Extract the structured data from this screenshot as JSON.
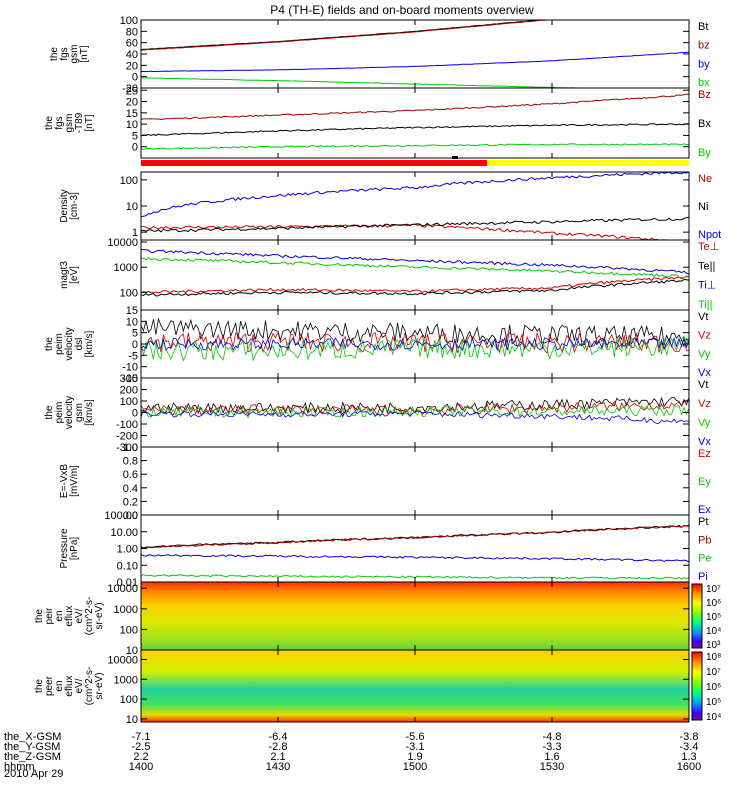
{
  "title": "P4 (TH-E) fields and on-board moments overview",
  "date_label": "2010 Apr 29",
  "orbit_rows": [
    {
      "label": "the_X-GSM",
      "values": [
        "-7.1",
        "-6.4",
        "-5.6",
        "-4.8",
        "-3.8"
      ]
    },
    {
      "label": "the_Y-GSM",
      "values": [
        "-2.5",
        "-2.8",
        "-3.1",
        "-3.3",
        "-3.4"
      ]
    },
    {
      "label": "the_Z-GSM",
      "values": [
        "2.2",
        "2.1",
        "1.9",
        "1.6",
        "1.3"
      ]
    },
    {
      "label": "hhmm",
      "values": [
        "1400",
        "1430",
        "1500",
        "1530",
        "1600"
      ]
    }
  ],
  "colors": {
    "black": "#000000",
    "red": "#d00000",
    "darkred": "#a00000",
    "blue": "#0000dd",
    "green": "#00cc00",
    "yellow": "#ffff00"
  },
  "chart_data": [
    {
      "type": "line",
      "ylabel": [
        "the",
        "fgs",
        "gsm",
        "[nT]"
      ],
      "ylim": [
        -20,
        100
      ],
      "ticks": [
        "100",
        "80",
        "60",
        "40",
        "20",
        "0",
        "-20"
      ],
      "tick_values": [
        100,
        80,
        60,
        40,
        20,
        0,
        -20
      ],
      "x": [
        0,
        0.25,
        0.5,
        0.75,
        1
      ],
      "series": [
        {
          "name": "Bt",
          "color": "#000000",
          "values": [
            48,
            62,
            80,
            102,
            130
          ]
        },
        {
          "name": "bz",
          "color": "#a00000",
          "values": [
            47,
            61,
            79,
            101,
            129
          ]
        },
        {
          "name": "by",
          "color": "#0000dd",
          "values": [
            9,
            12,
            18,
            28,
            43
          ]
        },
        {
          "name": "bx",
          "color": "#00cc00",
          "values": [
            -2,
            -7,
            -13,
            -19,
            -25
          ]
        }
      ]
    },
    {
      "type": "line",
      "ylabel": [
        "the",
        "fgs",
        "gsm",
        "-T89",
        "[nT]"
      ],
      "ylim": [
        -5,
        26
      ],
      "ticks": [
        "25",
        "20",
        "15",
        "10",
        "5",
        "0"
      ],
      "tick_values": [
        25,
        20,
        15,
        10,
        5,
        0
      ],
      "x": [
        0,
        0.25,
        0.5,
        0.75,
        1
      ],
      "series": [
        {
          "name": "Bz",
          "color": "#a00000",
          "values": [
            12,
            14,
            16,
            19,
            23
          ]
        },
        {
          "name": "Bx",
          "color": "#000000",
          "values": [
            5,
            7,
            8.5,
            9.5,
            10
          ]
        },
        {
          "name": "By",
          "color": "#00cc00",
          "values": [
            -1,
            0,
            0.5,
            1,
            1
          ]
        }
      ]
    },
    {
      "type": "line",
      "scale": "log",
      "ylabel": [
        "Density",
        "[cm-3]"
      ],
      "ylim": [
        0.5,
        200
      ],
      "ticks": [
        "100",
        "10",
        "1"
      ],
      "tick_values": [
        100,
        10,
        1
      ],
      "x": [
        0,
        0.25,
        0.5,
        0.75,
        1
      ],
      "series": [
        {
          "name": "Ne",
          "color": "#d00000",
          "values": [
            1.5,
            1.6,
            1.8,
            0.9,
            0.4
          ]
        },
        {
          "name": "Ni",
          "color": "#000000",
          "values": [
            1.1,
            1.4,
            1.9,
            2.5,
            3.3
          ]
        },
        {
          "name": "Npot",
          "color": "#0000dd",
          "values": [
            4,
            25,
            50,
            120,
            200
          ]
        }
      ]
    },
    {
      "type": "line",
      "scale": "log",
      "ylabel": [
        "magt3",
        "[eV]"
      ],
      "ylim": [
        20,
        12000
      ],
      "ticks": [
        "10000",
        "1000",
        "100"
      ],
      "tick_values": [
        10000,
        1000,
        100
      ],
      "x": [
        0,
        0.25,
        0.5,
        0.75,
        1
      ],
      "series": [
        {
          "name": "Te⊥",
          "color": "#d00000",
          "values": [
            100,
            130,
            110,
            150,
            400
          ]
        },
        {
          "name": "Te||",
          "color": "#000000",
          "values": [
            80,
            100,
            90,
            120,
            300
          ]
        },
        {
          "name": "Ti⊥",
          "color": "#0000dd",
          "values": [
            4500,
            2800,
            1800,
            1200,
            600
          ]
        },
        {
          "name": "Ti||",
          "color": "#00cc00",
          "values": [
            2200,
            1500,
            1000,
            700,
            420
          ]
        }
      ]
    },
    {
      "type": "line",
      "ylabel": [
        "the",
        "peim",
        "velocity",
        "dsl",
        "[km/s]"
      ],
      "ylim": [
        -15,
        15
      ],
      "ticks": [
        "15",
        "10",
        "5",
        "0",
        "-5",
        "-10",
        "-15"
      ],
      "tick_values": [
        15,
        10,
        5,
        0,
        -5,
        -10,
        -15
      ],
      "x": [
        0,
        0.25,
        0.5,
        0.75,
        1
      ],
      "series": [
        {
          "name": "Vt",
          "color": "#000000",
          "values": [
            7,
            6,
            5,
            4,
            3
          ]
        },
        {
          "name": "Vz",
          "color": "#d00000",
          "values": [
            1,
            1,
            0.5,
            0.5,
            0.5
          ]
        },
        {
          "name": "Vy",
          "color": "#00cc00",
          "values": [
            -3,
            -3,
            -2,
            -2,
            -1
          ]
        },
        {
          "name": "Vx",
          "color": "#0000dd",
          "values": [
            0,
            0,
            0,
            0,
            0
          ]
        }
      ]
    },
    {
      "type": "line",
      "ylabel": [
        "the",
        "peim",
        "velocity",
        "gsm",
        "[km/s]"
      ],
      "ylim": [
        -300,
        300
      ],
      "ticks": [
        "300",
        "200",
        "100",
        "0",
        "-100",
        "-200",
        "-300"
      ],
      "tick_values": [
        300,
        200,
        100,
        0,
        -100,
        -200,
        -300
      ],
      "x": [
        0,
        0.25,
        0.5,
        0.75,
        1
      ],
      "series": [
        {
          "name": "Vt",
          "color": "#000000",
          "values": [
            40,
            40,
            45,
            70,
            100
          ]
        },
        {
          "name": "Vz",
          "color": "#d00000",
          "values": [
            20,
            25,
            20,
            40,
            70
          ]
        },
        {
          "name": "Vy",
          "color": "#00cc00",
          "values": [
            0,
            0,
            10,
            10,
            20
          ]
        },
        {
          "name": "Vx",
          "color": "#0000dd",
          "values": [
            -10,
            -15,
            -10,
            -30,
            -80
          ]
        }
      ]
    },
    {
      "type": "line",
      "ylabel": [
        "E=-VxB",
        "[mV/m]"
      ],
      "ylim": [
        0,
        1
      ],
      "ticks": [
        "1.0",
        "0.8",
        "0.6",
        "0.4",
        "0.2",
        "0.0"
      ],
      "tick_values": [
        1,
        0.8,
        0.6,
        0.4,
        0.2,
        0
      ],
      "x": [],
      "series": [
        {
          "name": "Ez",
          "color": "#d00000",
          "values": []
        },
        {
          "name": "Ey",
          "color": "#00cc00",
          "values": []
        },
        {
          "name": "Ex",
          "color": "#0000dd",
          "values": []
        }
      ]
    },
    {
      "type": "line",
      "scale": "log",
      "ylabel": [
        "Pressure",
        "[nPa]"
      ],
      "ylim": [
        0.01,
        100
      ],
      "ticks": [
        "100.00",
        "10.00",
        "1.00",
        "0.10",
        "0.01"
      ],
      "tick_values": [
        100,
        10,
        1,
        0.1,
        0.01
      ],
      "x": [
        0,
        0.25,
        0.5,
        0.75,
        1
      ],
      "series": [
        {
          "name": "Pt",
          "color": "#000000",
          "values": [
            1.2,
            2.3,
            4.5,
            9,
            22
          ]
        },
        {
          "name": "Pb",
          "color": "#a00000",
          "values": [
            1.1,
            2.2,
            4.4,
            8.8,
            21
          ]
        },
        {
          "name": "Pe",
          "color": "#00cc00",
          "values": [
            0.025,
            0.022,
            0.02,
            0.018,
            0.017
          ]
        },
        {
          "name": "Pi",
          "color": "#0000dd",
          "values": [
            0.4,
            0.35,
            0.3,
            0.25,
            0.18
          ]
        }
      ]
    },
    {
      "type": "heatmap",
      "ylabel": [
        "the",
        "peir",
        "en",
        "eflux",
        "eV/",
        "(cm^2-s-",
        "sr-eV)"
      ],
      "ylim": [
        10,
        20000
      ],
      "ticks": [
        "10000",
        "1000",
        "100",
        "10"
      ],
      "tick_values": [
        10000,
        1000,
        100,
        10
      ],
      "colorbar": [
        "10⁷",
        "10⁶",
        "10⁵",
        "10⁴",
        "10³"
      ]
    },
    {
      "type": "heatmap",
      "ylabel": [
        "the",
        "peer",
        "en",
        "eflux",
        "eV/",
        "(cm^2-s-",
        "sr-eV)"
      ],
      "ylim": [
        7,
        30000
      ],
      "ticks": [
        "10000",
        "1000",
        "100",
        "10"
      ],
      "tick_values": [
        10000,
        1000,
        100,
        10
      ],
      "colorbar": [
        "10⁸",
        "10⁷",
        "10⁶",
        "10⁵",
        "10⁴"
      ]
    }
  ]
}
